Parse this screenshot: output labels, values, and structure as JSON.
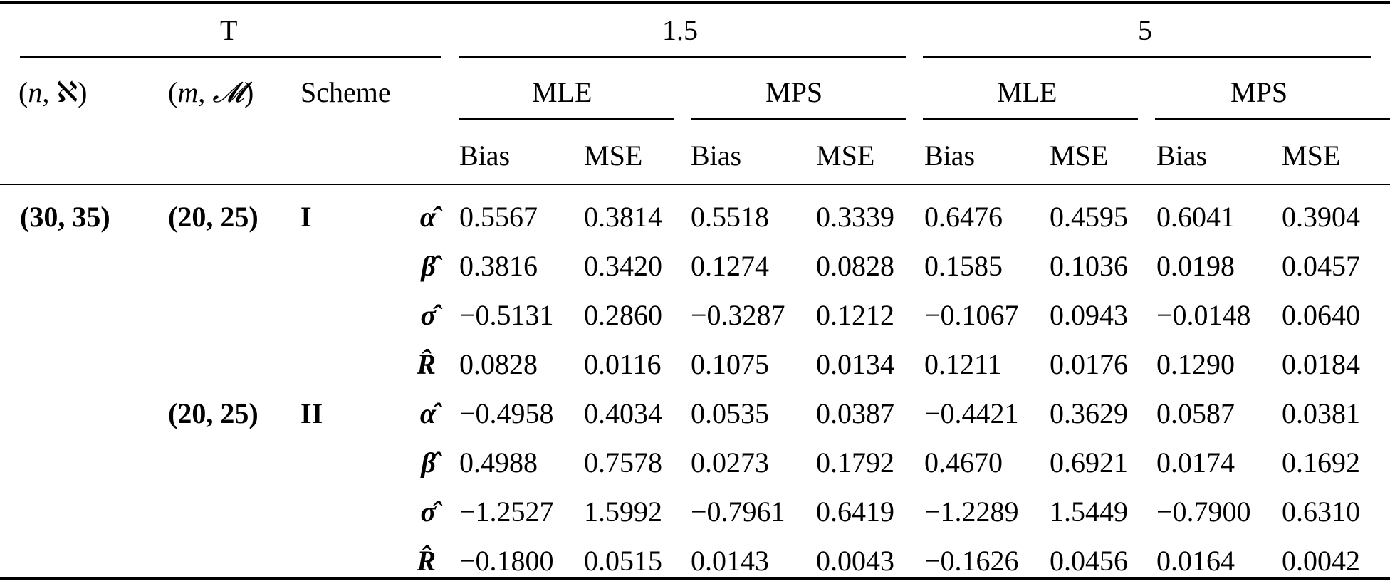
{
  "header": {
    "t_label": "T",
    "t_values": [
      "1.5",
      "5"
    ],
    "n_label": "(n, ℵ)",
    "n_parts": {
      "open": "(",
      "n": "n",
      "sep": ", ",
      "aleph": "ℵ",
      "close": ")"
    },
    "m_parts": {
      "open": "(",
      "m": "m",
      "sep": ", ",
      "M": "𝓜",
      "close": ")"
    },
    "scheme_label": "Scheme",
    "methods": [
      "MLE",
      "MPS",
      "MLE",
      "MPS"
    ],
    "metrics": [
      "Bias",
      "MSE",
      "Bias",
      "MSE",
      "Bias",
      "MSE",
      "Bias",
      "MSE"
    ]
  },
  "groups": [
    {
      "n": "(30, 35)",
      "m": "(20, 25)",
      "scheme": "I",
      "rows": [
        {
          "param": "α̂",
          "values": [
            "0.5567",
            "0.3814",
            "0.5518",
            "0.3339",
            "0.6476",
            "0.4595",
            "0.6041",
            "0.3904"
          ]
        },
        {
          "param": "β̂",
          "values": [
            "0.3816",
            "0.3420",
            "0.1274",
            "0.0828",
            "0.1585",
            "0.1036",
            "0.0198",
            "0.0457"
          ]
        },
        {
          "param": "σ̂",
          "values": [
            "−0.5131",
            "0.2860",
            "−0.3287",
            "0.1212",
            "−0.1067",
            "0.0943",
            "−0.0148",
            "0.0640"
          ]
        },
        {
          "param": "R̂",
          "values": [
            "0.0828",
            "0.0116",
            "0.1075",
            "0.0134",
            "0.1211",
            "0.0176",
            "0.1290",
            "0.0184"
          ]
        }
      ]
    },
    {
      "n": "",
      "m": "(20, 25)",
      "scheme": "II",
      "rows": [
        {
          "param": "α̂",
          "values": [
            "−0.4958",
            "0.4034",
            "0.0535",
            "0.0387",
            "−0.4421",
            "0.3629",
            "0.0587",
            "0.0381"
          ]
        },
        {
          "param": "β̂",
          "values": [
            "0.4988",
            "0.7578",
            "0.0273",
            "0.1792",
            "0.4670",
            "0.6921",
            "0.0174",
            "0.1692"
          ]
        },
        {
          "param": "σ̂",
          "values": [
            "−1.2527",
            "1.5992",
            "−0.7961",
            "0.6419",
            "−1.2289",
            "1.5449",
            "−0.7900",
            "0.6310"
          ]
        },
        {
          "param": "R̂",
          "values": [
            "−0.1800",
            "0.0515",
            "0.0143",
            "0.0043",
            "−0.1626",
            "0.0456",
            "0.0164",
            "0.0042"
          ]
        }
      ]
    }
  ]
}
